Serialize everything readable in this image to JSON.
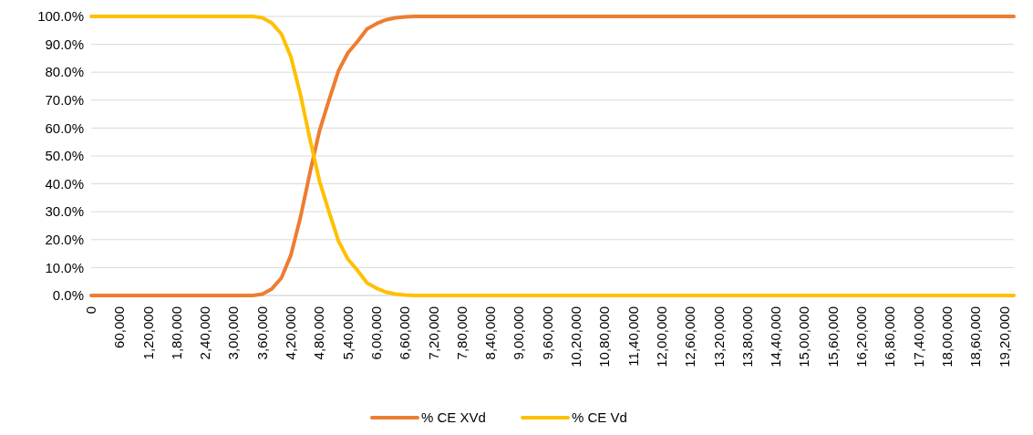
{
  "chart_data": {
    "type": "line",
    "categories": [
      "0",
      null,
      null,
      "60,000",
      null,
      null,
      "1,20,000",
      null,
      null,
      "1,80,000",
      null,
      null,
      "2,40,000",
      null,
      null,
      "3,00,000",
      null,
      null,
      "3,60,000",
      null,
      null,
      "4,20,000",
      null,
      null,
      "4,80,000",
      null,
      null,
      "5,40,000",
      null,
      null,
      "6,00,000",
      null,
      null,
      "6,60,000",
      null,
      null,
      "7,20,000",
      null,
      null,
      "7,80,000",
      null,
      null,
      "8,40,000",
      null,
      null,
      "9,00,000",
      null,
      null,
      "9,60,000",
      null,
      null,
      "10,20,000",
      null,
      null,
      "10,80,000",
      null,
      null,
      "11,40,000",
      null,
      null,
      "12,00,000",
      null,
      null,
      "12,60,000",
      null,
      null,
      "13,20,000",
      null,
      null,
      "13,80,000",
      null,
      null,
      "14,40,000",
      null,
      null,
      "15,00,000",
      null,
      null,
      "15,60,000",
      null,
      null,
      "16,20,000",
      null,
      null,
      "16,80,000",
      null,
      null,
      "17,40,000",
      null,
      null,
      "18,00,000",
      null,
      null,
      "18,60,000",
      null,
      null,
      "19,20,000",
      null
    ],
    "series": [
      {
        "name": "% CE XVd",
        "color": "#ed7d31",
        "values": [
          0,
          0,
          0,
          0,
          0,
          0,
          0,
          0,
          0,
          0,
          0,
          0,
          0,
          0,
          0,
          0,
          0,
          0,
          0.5,
          2.4,
          6.3,
          14.5,
          28,
          44,
          59,
          70,
          80.5,
          87,
          91,
          95.5,
          97.4,
          98.8,
          99.5,
          99.8,
          100,
          100,
          100,
          100,
          100,
          100,
          100,
          100,
          100,
          100,
          100,
          100,
          100,
          100,
          100,
          100,
          100,
          100,
          100,
          100,
          100,
          100,
          100,
          100,
          100,
          100,
          100,
          100,
          100,
          100,
          100,
          100,
          100,
          100,
          100,
          100,
          100,
          100,
          100,
          100,
          100,
          100,
          100,
          100,
          100,
          100,
          100,
          100,
          100,
          100,
          100,
          100,
          100,
          100,
          100,
          100,
          100,
          100,
          100,
          100,
          100,
          100,
          100,
          100
        ]
      },
      {
        "name": "% CE Vd",
        "color": "#ffc000",
        "values": [
          100,
          100,
          100,
          100,
          100,
          100,
          100,
          100,
          100,
          100,
          100,
          100,
          100,
          100,
          100,
          100,
          100,
          100,
          99.5,
          97.6,
          93.7,
          85.5,
          72,
          56,
          41,
          30,
          19.5,
          13,
          9,
          4.5,
          2.6,
          1.2,
          0.5,
          0.2,
          0,
          0,
          0,
          0,
          0,
          0,
          0,
          0,
          0,
          0,
          0,
          0,
          0,
          0,
          0,
          0,
          0,
          0,
          0,
          0,
          0,
          0,
          0,
          0,
          0,
          0,
          0,
          0,
          0,
          0,
          0,
          0,
          0,
          0,
          0,
          0,
          0,
          0,
          0,
          0,
          0,
          0,
          0,
          0,
          0,
          0,
          0,
          0,
          0,
          0,
          0,
          0,
          0,
          0,
          0,
          0,
          0,
          0,
          0,
          0,
          0,
          0,
          0,
          0
        ]
      }
    ],
    "ylim": [
      0,
      100
    ],
    "yticks": [
      {
        "value": 0,
        "label": "0.0%"
      },
      {
        "value": 10,
        "label": "10.0%"
      },
      {
        "value": 20,
        "label": "20.0%"
      },
      {
        "value": 30,
        "label": "30.0%"
      },
      {
        "value": 40,
        "label": "40.0%"
      },
      {
        "value": 50,
        "label": "50.0%"
      },
      {
        "value": 60,
        "label": "60.0%"
      },
      {
        "value": 70,
        "label": "70.0%"
      },
      {
        "value": 80,
        "label": "80.0%"
      },
      {
        "value": 90,
        "label": "90.0%"
      },
      {
        "value": 100,
        "label": "100.0%"
      }
    ],
    "grid": "y",
    "legend": "bottom",
    "marker": "none",
    "line_style": "solid"
  }
}
